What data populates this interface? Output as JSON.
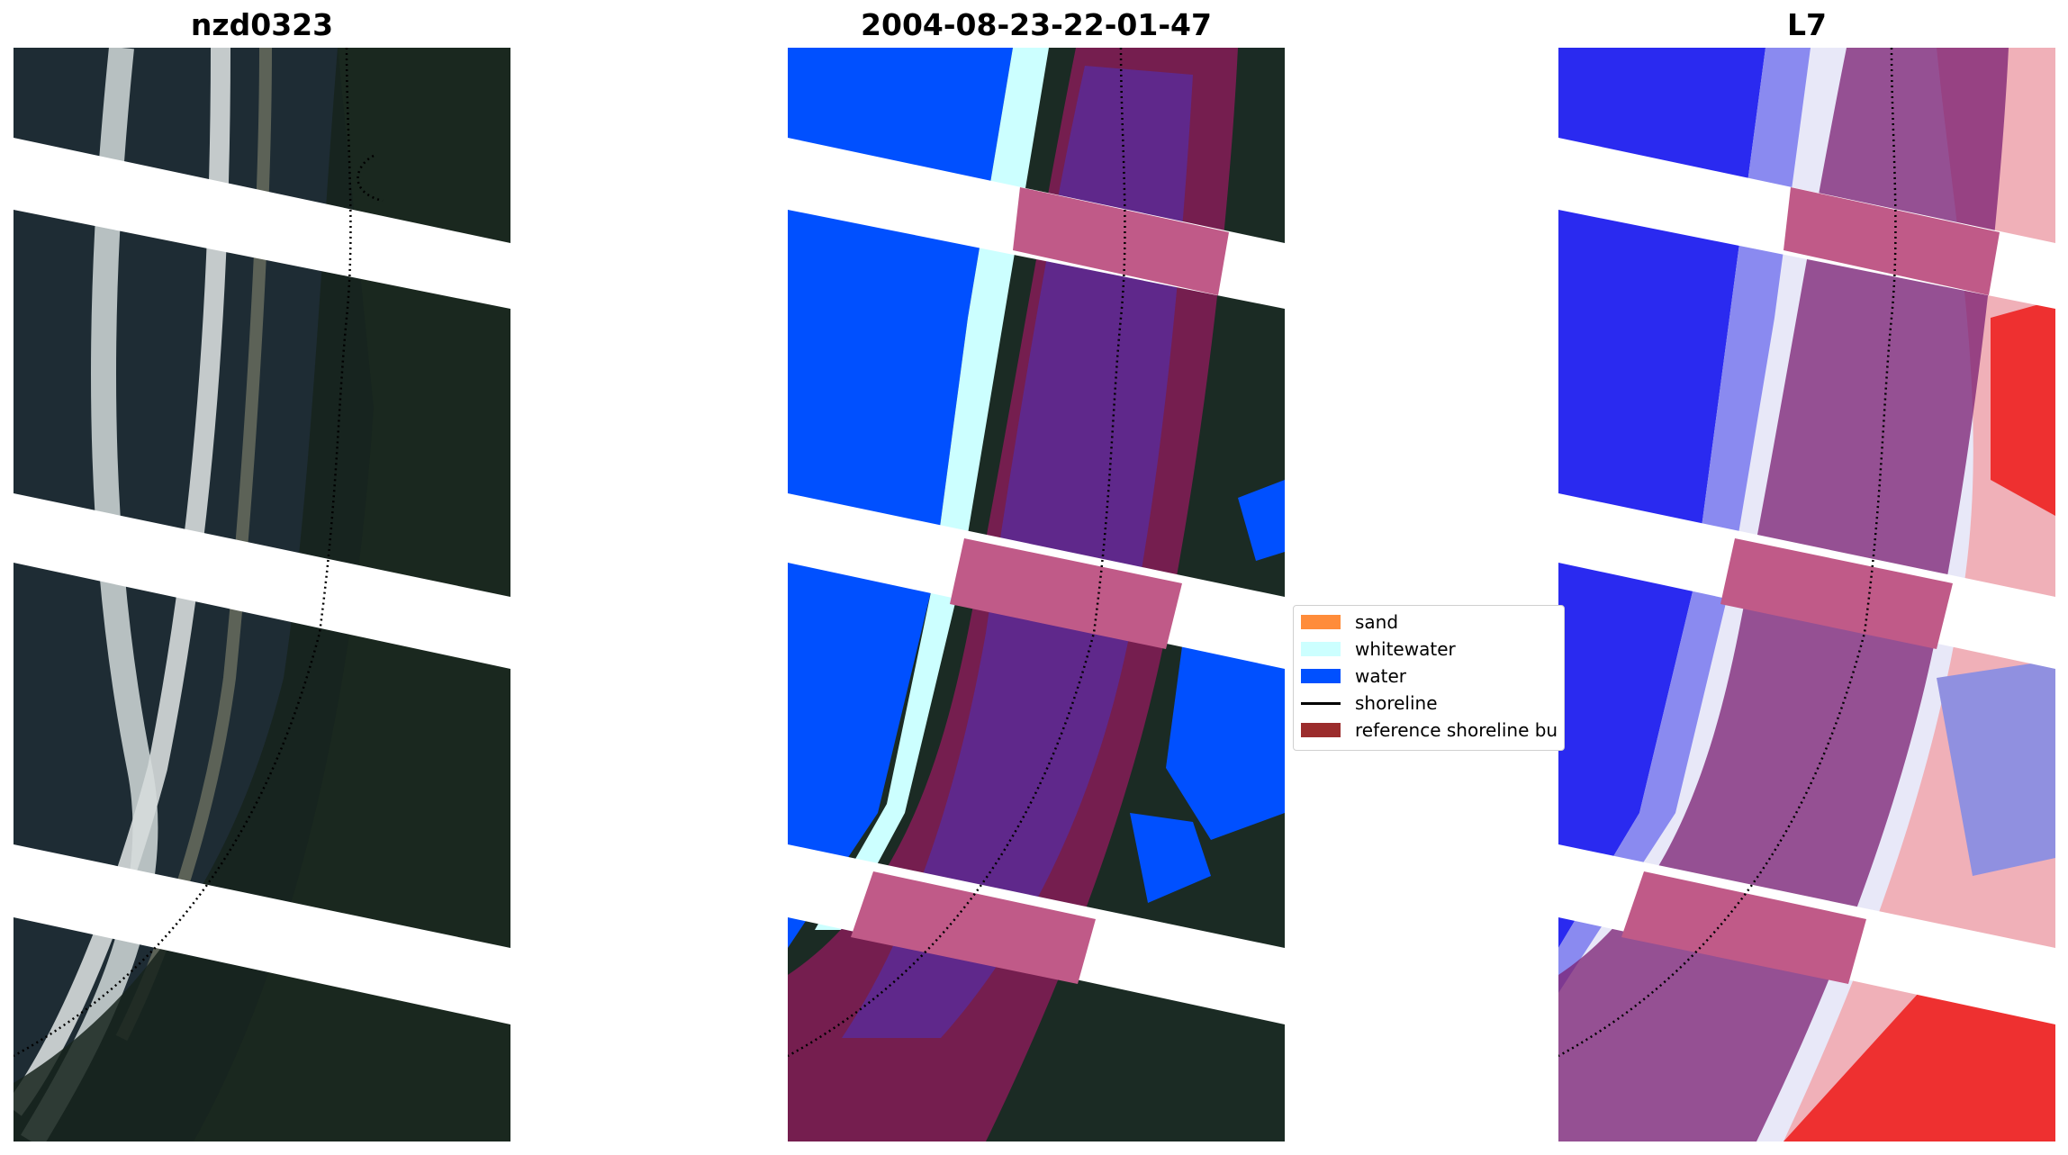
{
  "panels": [
    {
      "title": "nzd0323"
    },
    {
      "title": "2004-08-23-22-01-47"
    },
    {
      "title": "L7"
    }
  ],
  "legend": {
    "items": [
      {
        "label": "sand",
        "color": "#ff8c3a"
      },
      {
        "label": "whitewater",
        "color": "#ccffff"
      },
      {
        "label": "water",
        "color": "#0050ff"
      },
      {
        "label": "shoreline",
        "color": "#000000"
      },
      {
        "label": "reference shoreline bu",
        "color": "#9b2c2c"
      }
    ]
  }
}
